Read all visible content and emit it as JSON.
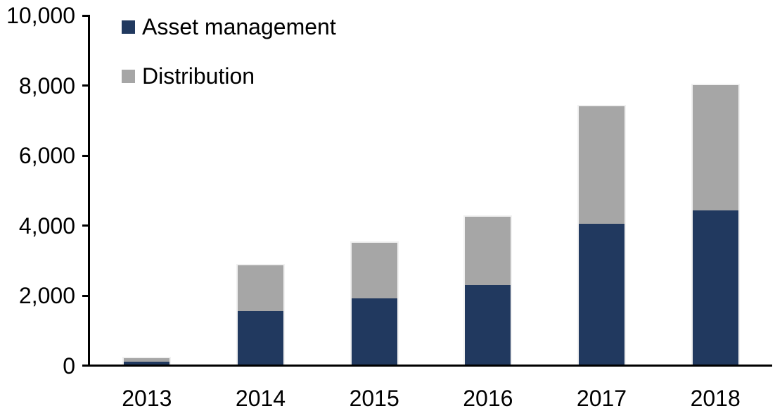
{
  "chart_data": {
    "type": "bar",
    "stacked": true,
    "title": "",
    "xlabel": "",
    "ylabel": "",
    "categories": [
      "2013",
      "2014",
      "2015",
      "2016",
      "2017",
      "2018"
    ],
    "series": [
      {
        "name": "Asset management",
        "color": "#21395F",
        "values": [
          100,
          1550,
          1900,
          2300,
          4050,
          4425
        ]
      },
      {
        "name": "Distribution",
        "color": "#A6A6A6",
        "values": [
          100,
          1300,
          1600,
          1950,
          3350,
          3575
        ]
      }
    ],
    "totals": [
      200,
      2850,
      3500,
      4250,
      7400,
      8000
    ],
    "ylim": [
      0,
      10000
    ],
    "yticks": [
      0,
      2000,
      4000,
      6000,
      8000,
      10000
    ],
    "ytick_labels": [
      "0",
      "2,000",
      "4,000",
      "6,000",
      "8,000",
      "10,000"
    ],
    "grid": false,
    "legend_position": "inside-top-left",
    "axis_color": "#000000",
    "text_color": "#000000",
    "background": "#FFFFFF"
  }
}
